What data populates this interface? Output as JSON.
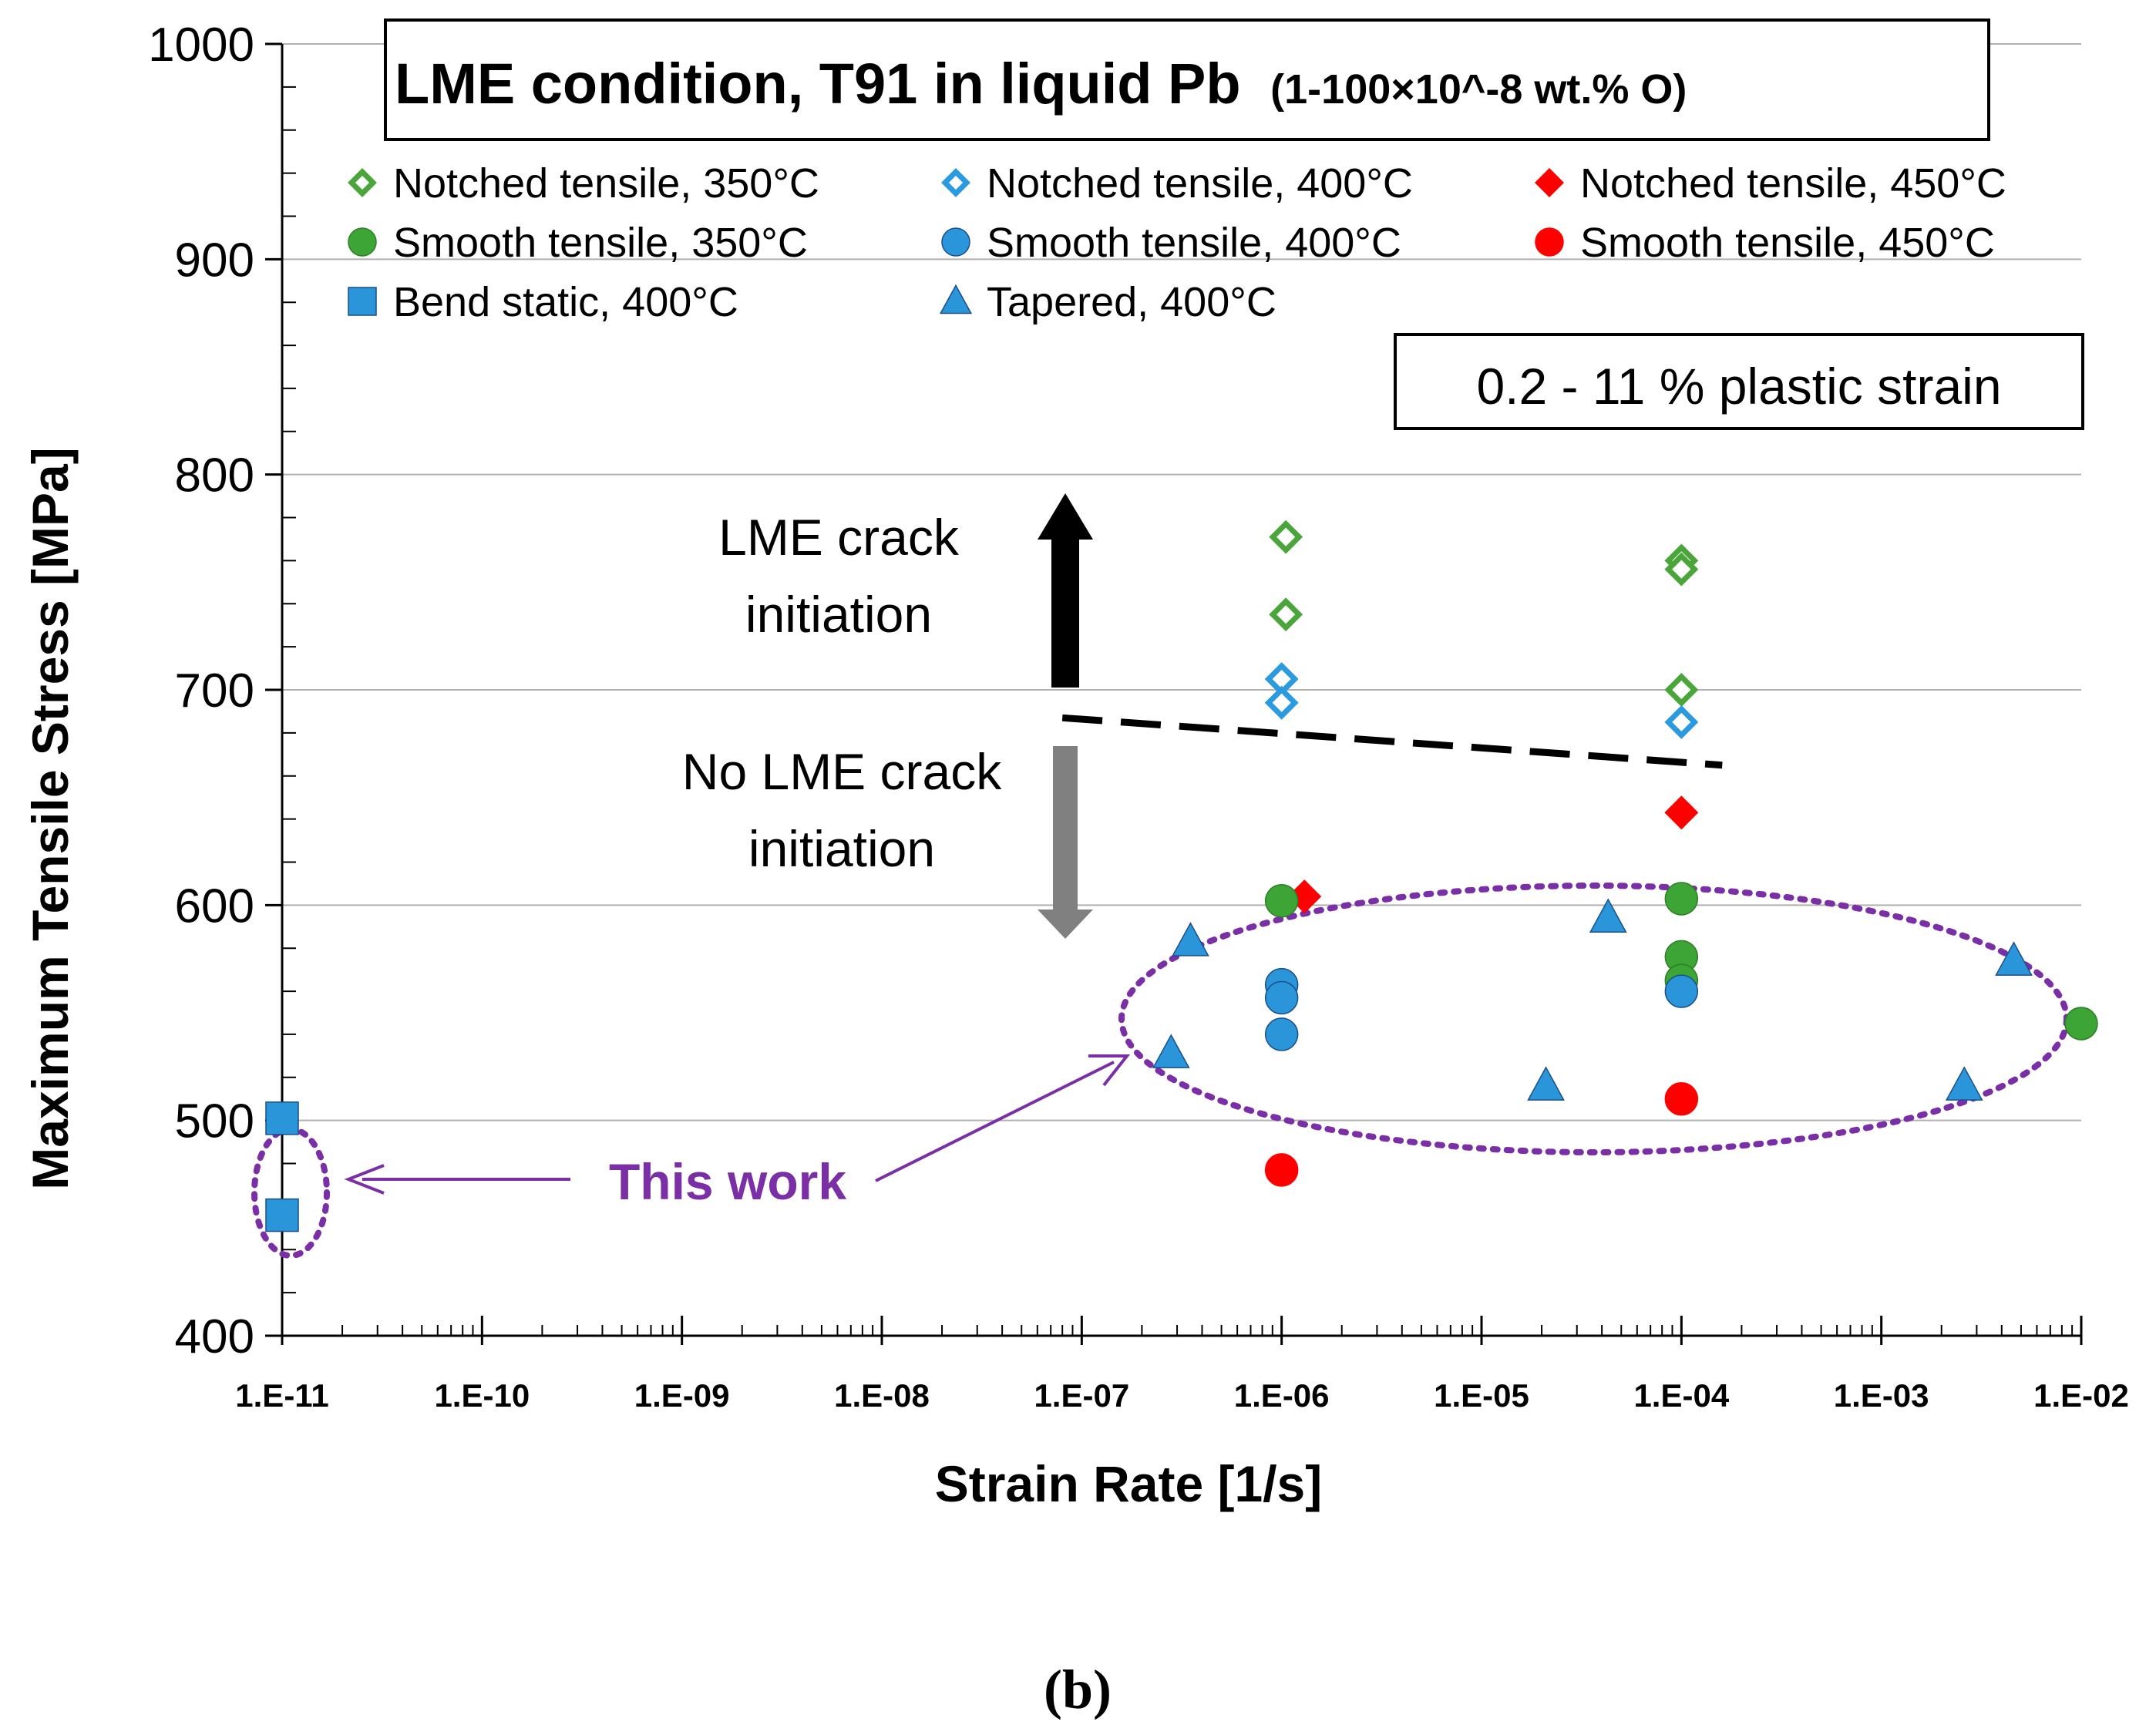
{
  "chart_data": {
    "type": "scatter",
    "title": "LME condition, T91 in liquid Pb",
    "subtitle": "(1-100×10^-8 wt.% O)",
    "xlabel": "Strain Rate [1/s]",
    "ylabel": "Maximum Tensile Stress [MPa]",
    "xscale": "log",
    "xlim": [
      1e-11,
      0.01
    ],
    "ylim": [
      400,
      1000
    ],
    "x_ticks": [
      {
        "value": 1e-11,
        "label": "1.E-11"
      },
      {
        "value": 1e-10,
        "label": "1.E-10"
      },
      {
        "value": 1e-09,
        "label": "1.E-09"
      },
      {
        "value": 1e-08,
        "label": "1.E-08"
      },
      {
        "value": 1e-07,
        "label": "1.E-07"
      },
      {
        "value": 1e-06,
        "label": "1.E-06"
      },
      {
        "value": 1e-05,
        "label": "1.E-05"
      },
      {
        "value": 0.0001,
        "label": "1.E-04"
      },
      {
        "value": 0.001,
        "label": "1.E-03"
      },
      {
        "value": 0.01,
        "label": "1.E-02"
      }
    ],
    "y_ticks": [
      {
        "value": 400,
        "label": "400"
      },
      {
        "value": 500,
        "label": "500"
      },
      {
        "value": 600,
        "label": "600"
      },
      {
        "value": 700,
        "label": "700"
      },
      {
        "value": 800,
        "label": "800"
      },
      {
        "value": 900,
        "label": "900"
      },
      {
        "value": 1000,
        "label": "1000"
      }
    ],
    "grid": "horizontal",
    "series": [
      {
        "name": "Notched tensile, 350°C",
        "marker": "diamond-open",
        "color": "#4aa63a",
        "points": [
          [
            1.05e-06,
            771
          ],
          [
            1.05e-06,
            735
          ],
          [
            0.0001,
            760
          ],
          [
            0.0001,
            756
          ],
          [
            0.0001,
            700
          ]
        ]
      },
      {
        "name": "Notched tensile, 400°C",
        "marker": "diamond-open",
        "color": "#2b9ade",
        "points": [
          [
            1e-06,
            705
          ],
          [
            1e-06,
            694
          ],
          [
            0.0001,
            685
          ]
        ]
      },
      {
        "name": "Notched tensile, 450°C",
        "marker": "diamond",
        "color": "#ff0000",
        "points": [
          [
            1.3e-06,
            604
          ],
          [
            0.0001,
            643
          ]
        ]
      },
      {
        "name": "Smooth tensile, 350°C",
        "marker": "circle",
        "color": "#3da535",
        "points": [
          [
            1e-06,
            602
          ],
          [
            0.0001,
            603
          ],
          [
            0.0001,
            576
          ],
          [
            0.0001,
            565
          ],
          [
            0.01,
            545
          ]
        ]
      },
      {
        "name": "Smooth tensile, 400°C",
        "marker": "circle",
        "color": "#2a95d8",
        "points": [
          [
            1e-06,
            563
          ],
          [
            1e-06,
            557
          ],
          [
            1e-06,
            540
          ],
          [
            0.0001,
            560
          ]
        ]
      },
      {
        "name": "Smooth tensile, 450°C",
        "marker": "circle",
        "color": "#ff0000",
        "points": [
          [
            1e-06,
            477
          ],
          [
            0.0001,
            510
          ]
        ]
      },
      {
        "name": "Bend static, 400°C",
        "marker": "square",
        "color": "#2a95d8",
        "points": [
          [
            1e-11,
            501
          ],
          [
            1e-11,
            456
          ]
        ]
      },
      {
        "name": "Tapered, 400°C",
        "marker": "triangle",
        "color": "#2a95d8",
        "points": [
          [
            3.5e-07,
            583
          ],
          [
            2.8e-07,
            531
          ],
          [
            2.1e-05,
            516
          ],
          [
            4.3e-05,
            594
          ],
          [
            0.0026,
            516
          ],
          [
            0.0046,
            574
          ]
        ]
      }
    ],
    "threshold_line": {
      "style": "dashed",
      "from": [
        8e-08,
        687
      ],
      "to": [
        0.00016,
        665
      ]
    },
    "annotations": {
      "plastic_strain": "0.2 - 11 % plastic strain",
      "lme_crack_line1": "LME crack",
      "lme_crack_line2": "initiation",
      "no_lme_line1": "No LME crack",
      "no_lme_line2": "initiation",
      "this_work": "This work"
    },
    "caption": "(b)"
  },
  "colors": {
    "this_work": "#7b2fa6",
    "grid": "#b0b0b0",
    "up_arrow": "#000000",
    "down_arrow": "#808080"
  }
}
